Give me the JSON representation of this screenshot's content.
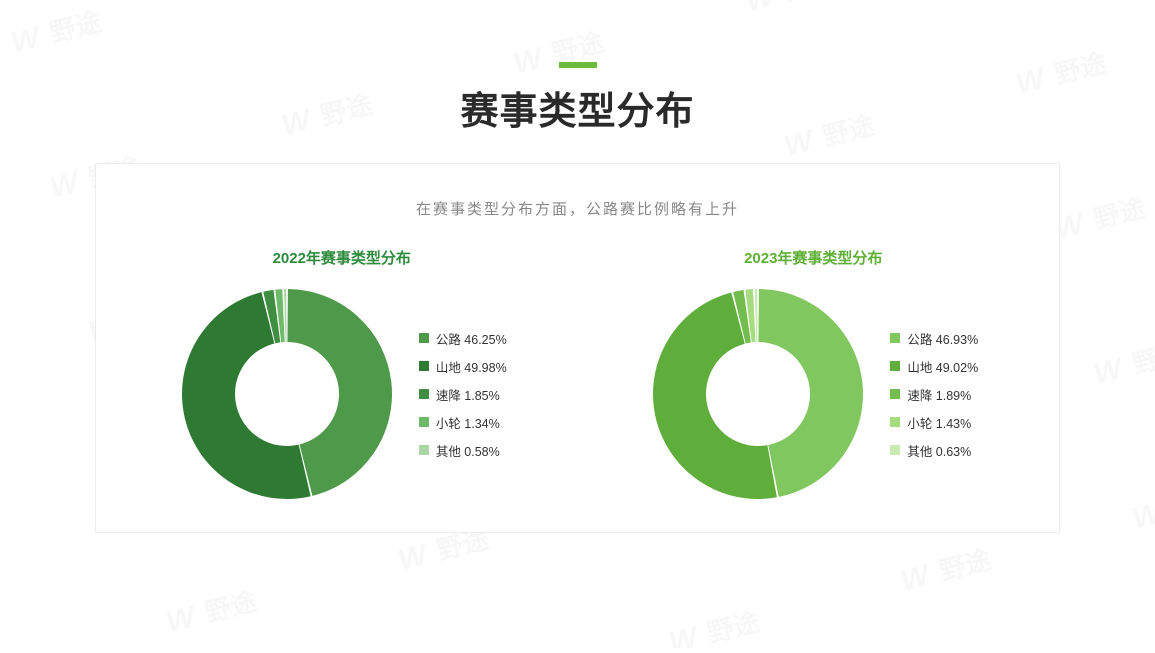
{
  "page": {
    "accent_color": "#6cbb3c",
    "title": "赛事类型分布",
    "title_color": "#2a2a2a",
    "subtitle": "在赛事类型分布方面，公路赛比例略有上升",
    "subtitle_color": "#888888",
    "card_border": "#ececec",
    "background": "#ffffff",
    "watermark_text": "野途",
    "watermark_color": "#bbbbbb"
  },
  "charts": [
    {
      "id": "chart2022",
      "title": "2022年赛事类型分布",
      "title_color": "#2e8b3d",
      "donut": {
        "outer_radius": 105,
        "inner_radius": 52,
        "gap_deg": 1.0,
        "background": "#ffffff"
      },
      "series": [
        {
          "label": "公路",
          "value": 46.25,
          "color": "#4f9a4a"
        },
        {
          "label": "山地",
          "value": 49.98,
          "color": "#2e7a33"
        },
        {
          "label": "速降",
          "value": 1.85,
          "color": "#3f8e41"
        },
        {
          "label": "小轮",
          "value": 1.34,
          "color": "#6fb96a"
        },
        {
          "label": "其他",
          "value": 0.58,
          "color": "#a9d6a3"
        }
      ]
    },
    {
      "id": "chart2023",
      "title": "2023年赛事类型分布",
      "title_color": "#5fb037",
      "donut": {
        "outer_radius": 105,
        "inner_radius": 52,
        "gap_deg": 1.0,
        "background": "#ffffff"
      },
      "series": [
        {
          "label": "公路",
          "value": 46.93,
          "color": "#81c760"
        },
        {
          "label": "山地",
          "value": 49.02,
          "color": "#5fae3c"
        },
        {
          "label": "速降",
          "value": 1.89,
          "color": "#73bd4e"
        },
        {
          "label": "小轮",
          "value": 1.43,
          "color": "#a7db80"
        },
        {
          "label": "其他",
          "value": 0.63,
          "color": "#c9eab0"
        }
      ]
    }
  ]
}
